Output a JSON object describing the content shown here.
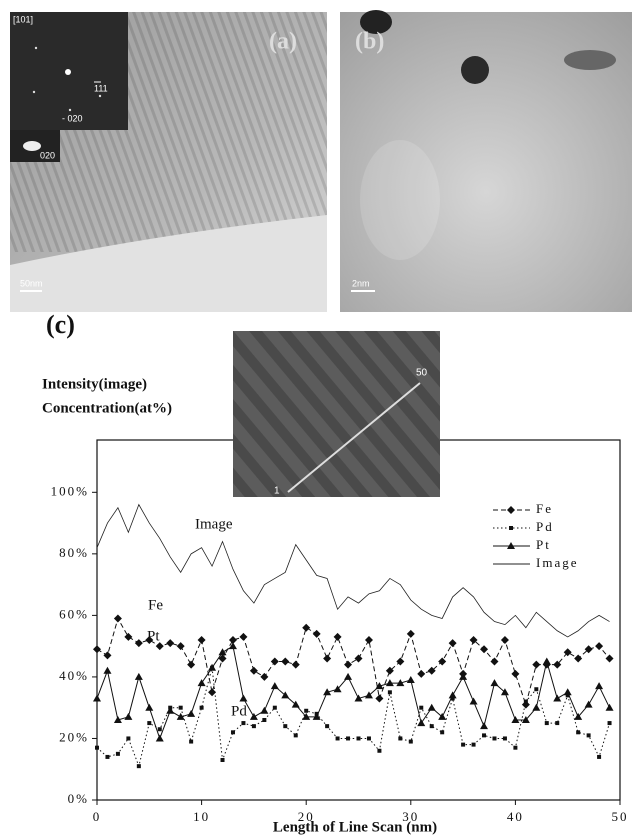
{
  "panels": {
    "a": {
      "label": "(a)",
      "zone_axis": "[101]",
      "spot_1": "111",
      "spot_2": "- 020",
      "dark_field": "020",
      "scale": "50nm"
    },
    "b": {
      "label": "(b)",
      "scale": "2nm"
    },
    "c": {
      "label": "(c)",
      "inset_start": "1",
      "inset_end": "50"
    }
  },
  "chart_data": {
    "type": "line",
    "y_title": [
      "Intensity(image)",
      "Concentration(at%)"
    ],
    "x_title": "Length of Line Scan (nm)",
    "x": [
      0,
      1,
      2,
      3,
      4,
      5,
      6,
      7,
      8,
      9,
      10,
      11,
      12,
      13,
      14,
      15,
      16,
      17,
      18,
      19,
      20,
      21,
      22,
      23,
      24,
      25,
      26,
      27,
      28,
      29,
      30,
      31,
      32,
      33,
      34,
      35,
      36,
      37,
      38,
      39,
      40,
      41,
      42,
      43,
      44,
      45,
      46,
      47,
      48,
      49
    ],
    "series": [
      {
        "name": "Fe",
        "color": "#111",
        "dash": "dashed",
        "marker": "diamond",
        "values": [
          49,
          47,
          59,
          53,
          51,
          52,
          50,
          51,
          50,
          44,
          52,
          35,
          46,
          52,
          53,
          42,
          40,
          45,
          45,
          44,
          56,
          54,
          46,
          53,
          44,
          46,
          52,
          33,
          42,
          45,
          54,
          41,
          42,
          45,
          51,
          41,
          52,
          49,
          45,
          52,
          41,
          31,
          44,
          44,
          44,
          48,
          46,
          49,
          50,
          46
        ]
      },
      {
        "name": "Pd",
        "color": "#111",
        "dash": "dotted",
        "marker": "square",
        "values": [
          17,
          14,
          15,
          20,
          11,
          25,
          23,
          30,
          30,
          19,
          30,
          43,
          13,
          22,
          25,
          24,
          26,
          30,
          24,
          21,
          29,
          28,
          24,
          20,
          20,
          20,
          20,
          16,
          35,
          20,
          19,
          30,
          24,
          22,
          33,
          18,
          18,
          21,
          20,
          20,
          17,
          32,
          36,
          25,
          25,
          34,
          22,
          21,
          14,
          25
        ]
      },
      {
        "name": "Pt",
        "color": "#111",
        "dash": "solid",
        "marker": "triangle",
        "values": [
          33,
          42,
          26,
          27,
          40,
          30,
          20,
          29,
          27,
          28,
          38,
          43,
          48,
          50,
          33,
          27,
          29,
          37,
          34,
          31,
          27,
          27,
          35,
          36,
          40,
          33,
          34,
          37,
          38,
          38,
          39,
          25,
          30,
          27,
          34,
          40,
          32,
          24,
          38,
          35,
          26,
          26,
          30,
          45,
          33,
          35,
          27,
          31,
          37,
          30
        ]
      },
      {
        "name": "Image",
        "color": "#222",
        "dash": "solid",
        "marker": "none",
        "values": [
          82,
          90,
          95,
          87,
          96,
          90,
          85,
          79,
          74,
          80,
          82,
          76,
          84,
          75,
          68,
          64,
          70,
          72,
          74,
          83,
          78,
          73,
          72,
          62,
          66,
          64,
          67,
          68,
          72,
          70,
          65,
          62,
          60,
          59,
          66,
          69,
          66,
          61,
          58,
          57,
          60,
          56,
          61,
          58,
          55,
          53,
          55,
          58,
          60,
          58
        ]
      }
    ],
    "annotations": [
      "Image",
      "Fe",
      "Pt",
      "Pd"
    ],
    "xlim": [
      0,
      50
    ],
    "xticks": [
      0,
      10,
      20,
      30,
      40,
      50
    ],
    "ylim": [
      0,
      117
    ],
    "yticks": [
      {
        "value": 0,
        "label": "0%"
      },
      {
        "value": 20,
        "label": "20%"
      },
      {
        "value": 40,
        "label": "40%"
      },
      {
        "value": 60,
        "label": "60%"
      },
      {
        "value": 80,
        "label": "80%"
      },
      {
        "value": 100,
        "label": "100%"
      }
    ],
    "legend": "right"
  }
}
